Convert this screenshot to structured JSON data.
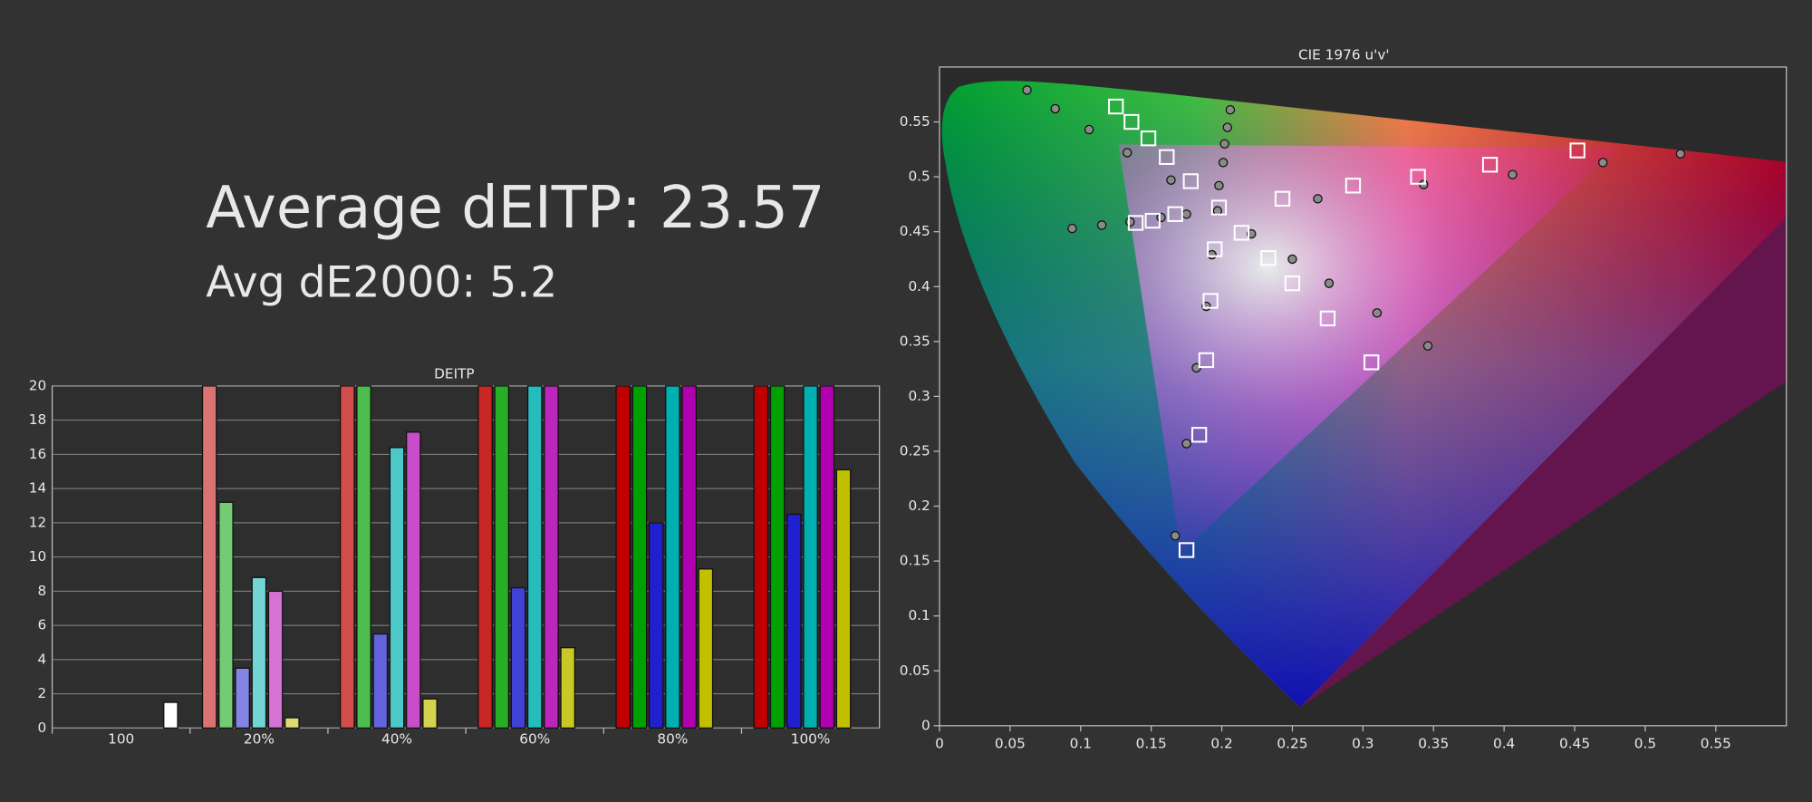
{
  "header": {
    "average_deitp": "Average dEITP: 23.57",
    "average_de2000": "Avg dE2000: 5.2"
  },
  "chart_data": [
    {
      "type": "bar",
      "title": "DEITP",
      "categories": [
        "100",
        "20%",
        "40%",
        "60%",
        "80%",
        "100%"
      ],
      "series": [
        {
          "color": "#c00000",
          "values": [
            null,
            20,
            20,
            20,
            20,
            20
          ]
        },
        {
          "color": "#00a000",
          "values": [
            null,
            13.2,
            20,
            20,
            20,
            20
          ]
        },
        {
          "color": "#2020d0",
          "values": [
            null,
            3.5,
            5.5,
            8.2,
            12.0,
            12.5
          ]
        },
        {
          "color": "#00b0b0",
          "values": [
            null,
            8.8,
            16.4,
            20,
            20,
            20
          ]
        },
        {
          "color": "#b000b0",
          "values": [
            null,
            8.0,
            17.3,
            20,
            20,
            20
          ]
        },
        {
          "color": "#c0c000",
          "values": [
            null,
            0.6,
            1.7,
            4.7,
            9.3,
            15.1
          ]
        },
        {
          "color": "#ffffff",
          "values": [
            1.5,
            null,
            null,
            null,
            null,
            null
          ]
        }
      ],
      "ylim": [
        0,
        20
      ],
      "yticks": [
        0,
        2,
        4,
        6,
        8,
        10,
        12,
        14,
        16,
        18,
        20
      ],
      "grid": true
    },
    {
      "type": "scatter",
      "title": "CIE 1976 u'v'",
      "xlim": [
        0,
        0.6
      ],
      "ylim": [
        0,
        0.6
      ],
      "xticks": [
        0,
        0.05,
        0.1,
        0.15,
        0.2,
        0.25,
        0.3,
        0.35,
        0.4,
        0.45,
        0.5,
        0.55
      ],
      "yticks": [
        0,
        0.05,
        0.1,
        0.15,
        0.2,
        0.25,
        0.3,
        0.35,
        0.4,
        0.45,
        0.5,
        0.55
      ],
      "series": [
        {
          "marker": "circle",
          "color": "#8a8a8a",
          "x": [
            0.062,
            0.082,
            0.106,
            0.206,
            0.204,
            0.202,
            0.201,
            0.198,
            0.197,
            0.133,
            0.164,
            0.094,
            0.115,
            0.135,
            0.157,
            0.175,
            0.221,
            0.193,
            0.25,
            0.268,
            0.343,
            0.406,
            0.47,
            0.525,
            0.276,
            0.31,
            0.189,
            0.182,
            0.175,
            0.167,
            0.346
          ],
          "y": [
            0.579,
            0.562,
            0.543,
            0.561,
            0.545,
            0.53,
            0.513,
            0.492,
            0.469,
            0.522,
            0.497,
            0.453,
            0.456,
            0.459,
            0.463,
            0.466,
            0.448,
            0.429,
            0.425,
            0.48,
            0.493,
            0.502,
            0.513,
            0.521,
            0.403,
            0.376,
            0.382,
            0.326,
            0.257,
            0.173,
            0.346
          ]
        },
        {
          "marker": "square",
          "color": "#ffffff",
          "x": [
            0.125,
            0.136,
            0.148,
            0.161,
            0.178,
            0.198,
            0.167,
            0.151,
            0.139,
            0.214,
            0.195,
            0.233,
            0.25,
            0.192,
            0.275,
            0.189,
            0.306,
            0.184,
            0.175,
            0.243,
            0.293,
            0.339,
            0.39,
            0.452
          ],
          "y": [
            0.564,
            0.55,
            0.535,
            0.518,
            0.496,
            0.472,
            0.466,
            0.46,
            0.458,
            0.449,
            0.434,
            0.426,
            0.403,
            0.387,
            0.371,
            0.333,
            0.331,
            0.265,
            0.16,
            0.48,
            0.492,
            0.5,
            0.511,
            0.524
          ]
        }
      ]
    }
  ]
}
